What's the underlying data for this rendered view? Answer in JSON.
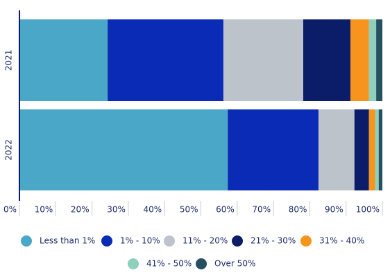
{
  "chart_data": {
    "type": "stacked-bar-horizontal",
    "categories": [
      "2021",
      "2022"
    ],
    "series": [
      {
        "name": "Less than 1%",
        "color": "#4aa7c7",
        "values": [
          24.3,
          57.4
        ]
      },
      {
        "name": "1% - 10%",
        "color": "#0a2bb5",
        "values": [
          31.9,
          25.0
        ]
      },
      {
        "name": "11% - 20%",
        "color": "#bcc3ca",
        "values": [
          22.0,
          9.9
        ]
      },
      {
        "name": "21% - 30%",
        "color": "#0b1c69",
        "values": [
          13.0,
          4.0
        ]
      },
      {
        "name": "31% - 40%",
        "color": "#f7941d",
        "values": [
          5.1,
          1.7
        ]
      },
      {
        "name": "41% - 50%",
        "color": "#8fd0bd",
        "values": [
          2.0,
          1.0
        ]
      },
      {
        "name": "Over 50%",
        "color": "#24505f",
        "values": [
          1.7,
          1.0
        ]
      }
    ],
    "xlim": [
      0,
      100
    ],
    "xticks": [
      {
        "value": 0,
        "label": "0%"
      },
      {
        "value": 10,
        "label": "10%"
      },
      {
        "value": 20,
        "label": "20%"
      },
      {
        "value": 30,
        "label": "30%"
      },
      {
        "value": 40,
        "label": "40%"
      },
      {
        "value": 50,
        "label": "50%"
      },
      {
        "value": 60,
        "label": "60%"
      },
      {
        "value": 70,
        "label": "70%"
      },
      {
        "value": 80,
        "label": "80%"
      },
      {
        "value": 90,
        "label": "90%"
      },
      {
        "value": 100,
        "label": "100%"
      }
    ],
    "legend": "bottom"
  }
}
